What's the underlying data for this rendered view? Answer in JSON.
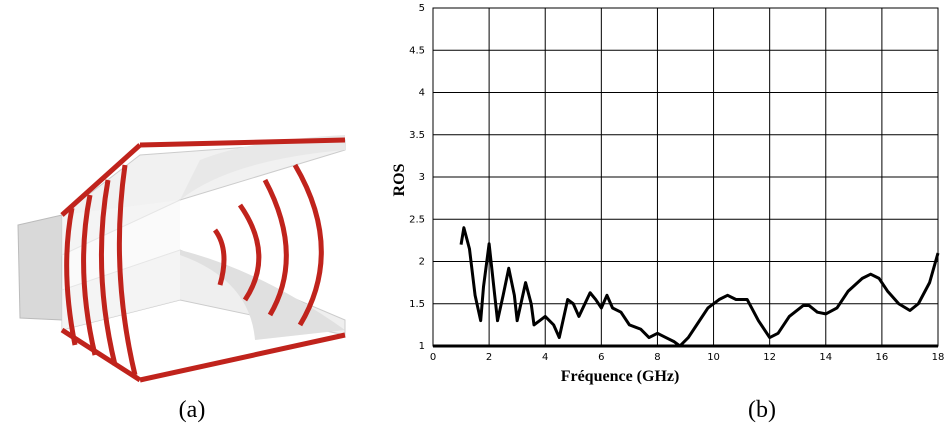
{
  "chart_data": {
    "type": "line",
    "xlabel": "Fréquence (GHz)",
    "ylabel": "ROS",
    "x": [
      1.0,
      1.1,
      1.3,
      1.5,
      1.7,
      1.8,
      2.0,
      2.2,
      2.3,
      2.5,
      2.7,
      2.9,
      3.0,
      3.3,
      3.5,
      3.6,
      3.8,
      4.0,
      4.3,
      4.5,
      4.8,
      5.0,
      5.2,
      5.6,
      5.8,
      6.0,
      6.2,
      6.4,
      6.7,
      7.0,
      7.4,
      7.7,
      8.0,
      8.3,
      8.6,
      8.8,
      9.1,
      9.4,
      9.8,
      10.2,
      10.5,
      10.8,
      11.2,
      11.6,
      12.0,
      12.3,
      12.7,
      13.2,
      13.4,
      13.7,
      14.0,
      14.4,
      14.8,
      15.3,
      15.6,
      15.9,
      16.2,
      16.6,
      17.0,
      17.3,
      17.7,
      18.0
    ],
    "series": [
      {
        "color": "#000000",
        "values": [
          2.2,
          2.4,
          2.15,
          1.6,
          1.3,
          1.7,
          2.21,
          1.6,
          1.3,
          1.6,
          1.92,
          1.6,
          1.3,
          1.75,
          1.5,
          1.25,
          1.3,
          1.35,
          1.25,
          1.1,
          1.55,
          1.5,
          1.35,
          1.63,
          1.55,
          1.45,
          1.6,
          1.45,
          1.4,
          1.25,
          1.2,
          1.1,
          1.15,
          1.1,
          1.05,
          1.0,
          1.1,
          1.25,
          1.45,
          1.55,
          1.6,
          1.55,
          1.55,
          1.3,
          1.1,
          1.15,
          1.35,
          1.48,
          1.48,
          1.4,
          1.38,
          1.45,
          1.65,
          1.8,
          1.85,
          1.8,
          1.65,
          1.5,
          1.42,
          1.5,
          1.75,
          2.1
        ]
      }
    ],
    "xlim": [
      0,
      18
    ],
    "xticks": [
      0,
      2,
      4,
      6,
      8,
      10,
      12,
      14,
      16,
      18
    ],
    "ylim": [
      1,
      5
    ],
    "yticks": [
      1,
      1.5,
      2,
      2.5,
      3,
      3.5,
      4,
      4.5,
      5
    ],
    "grid": true
  },
  "captions": [
    "(a)",
    "(b)"
  ]
}
